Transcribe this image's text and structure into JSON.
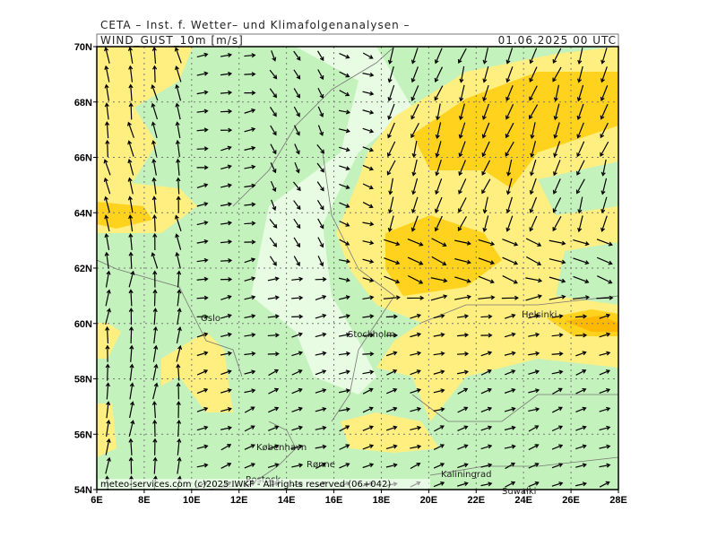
{
  "header": {
    "title": "CETA – Inst. f. Wetter– und Klimafolgenanalysen –",
    "parameter": "WIND_GUST_10m [m/s]",
    "valid_time": "01.06.2025 00 UTC"
  },
  "lat_labels": [
    "70N",
    "68N",
    "66N",
    "64N",
    "62N",
    "60N",
    "58N",
    "56N",
    "54N"
  ],
  "lon_labels": [
    "6E",
    "8E",
    "10E",
    "12E",
    "14E",
    "16E",
    "18E",
    "20E",
    "22E",
    "24E",
    "26E",
    "28E"
  ],
  "cities": [
    "Oslo",
    "Stockholm",
    "Helsinki",
    "København",
    "Rønne",
    "Rostock",
    "Kaliningrad",
    "Suwałki"
  ],
  "footer": "meteo-services.com (c)2025 IWKF - All rights reserved (06+042)"
}
